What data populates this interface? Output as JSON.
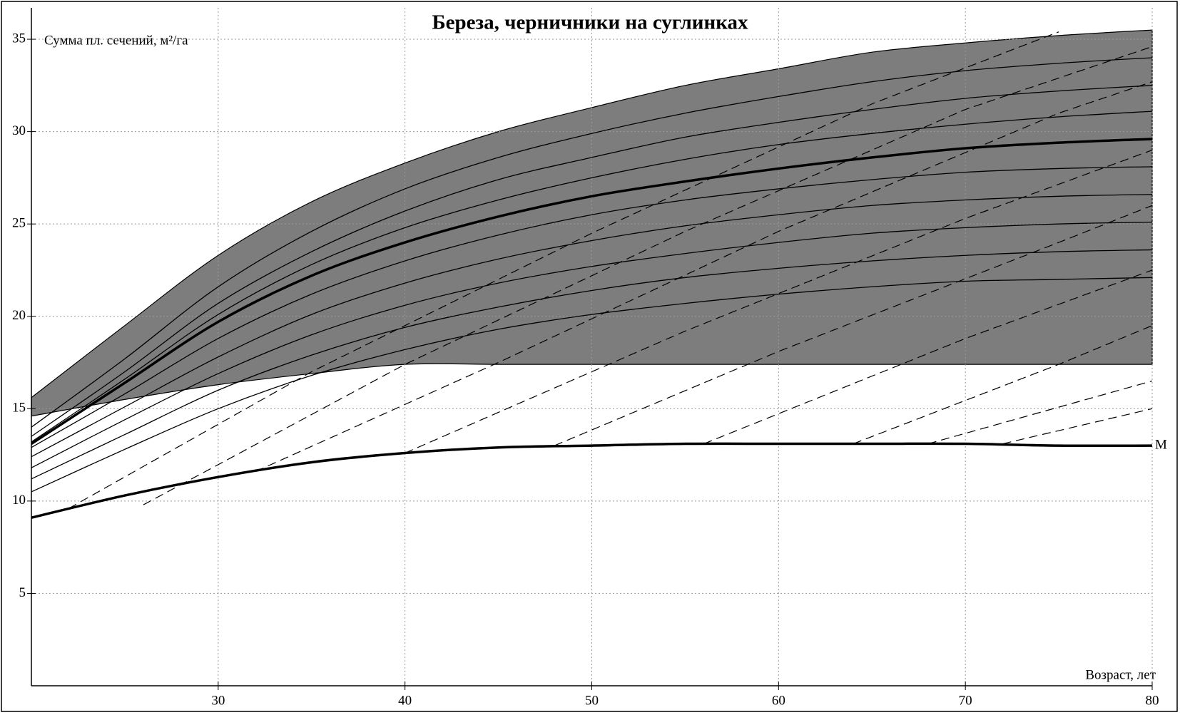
{
  "chart_data": {
    "type": "line",
    "title": "Береза, черничники на суглинках",
    "y_label": "Сумма пл. сечений, м²/га",
    "x_label": "Возраст, лет",
    "xlim": [
      20,
      80
    ],
    "ylim": [
      0,
      36.7
    ],
    "xticks": [
      30,
      40,
      50,
      60,
      70,
      80
    ],
    "yticks": [
      5,
      10,
      15,
      20,
      25,
      30,
      35
    ],
    "grid": true,
    "x": [
      20,
      25,
      30,
      35,
      40,
      45,
      50,
      55,
      60,
      65,
      70,
      75,
      80
    ],
    "band": {
      "color": "#7d7d7d",
      "upper": [
        15.6,
        19.5,
        23.3,
        26.2,
        28.3,
        30.0,
        31.3,
        32.5,
        33.4,
        34.3,
        34.8,
        35.2,
        35.5
      ],
      "lower": [
        14.6,
        15.5,
        16.3,
        16.9,
        17.4,
        17.4,
        17.4,
        17.4,
        17.4,
        17.4,
        17.4,
        17.4,
        17.4
      ]
    },
    "series": [
      {
        "color": "#000000",
        "width": 1.3,
        "values": [
          14.0,
          17.7,
          21.6,
          24.6,
          26.9,
          28.6,
          29.9,
          31.0,
          31.9,
          32.7,
          33.3,
          33.7,
          34.0
        ]
      },
      {
        "color": "#000000",
        "width": 1.3,
        "values": [
          13.5,
          17.0,
          20.7,
          23.5,
          25.7,
          27.4,
          28.6,
          29.7,
          30.5,
          31.2,
          31.8,
          32.2,
          32.5
        ]
      },
      {
        "color": "#000000",
        "width": 1.3,
        "values": [
          13.2,
          16.6,
          20.1,
          22.8,
          24.8,
          26.3,
          27.5,
          28.5,
          29.3,
          29.9,
          30.4,
          30.8,
          31.1
        ]
      },
      {
        "color": "#000000",
        "width": 3.5,
        "values": [
          13.1,
          16.4,
          19.7,
          22.2,
          24.0,
          25.4,
          26.5,
          27.3,
          28.0,
          28.6,
          29.1,
          29.4,
          29.6
        ]
      },
      {
        "color": "#000000",
        "width": 1.3,
        "values": [
          12.9,
          15.8,
          18.8,
          21.2,
          23.0,
          24.4,
          25.5,
          26.3,
          26.9,
          27.4,
          27.8,
          28.0,
          28.1
        ]
      },
      {
        "color": "#000000",
        "width": 1.3,
        "values": [
          12.4,
          15.1,
          17.8,
          20.1,
          21.8,
          23.1,
          24.1,
          24.9,
          25.5,
          26.0,
          26.3,
          26.5,
          26.6
        ]
      },
      {
        "color": "#000000",
        "width": 1.3,
        "values": [
          11.8,
          14.4,
          16.9,
          19.0,
          20.6,
          21.8,
          22.7,
          23.4,
          24.0,
          24.5,
          24.8,
          25.0,
          25.1
        ]
      },
      {
        "color": "#000000",
        "width": 1.3,
        "values": [
          11.2,
          13.6,
          16.0,
          17.9,
          19.4,
          20.5,
          21.4,
          22.1,
          22.6,
          23.0,
          23.3,
          23.5,
          23.6
        ]
      },
      {
        "color": "#000000",
        "width": 1.3,
        "values": [
          10.5,
          12.8,
          15.0,
          16.8,
          18.2,
          19.3,
          20.1,
          20.7,
          21.2,
          21.6,
          21.9,
          22.0,
          22.1
        ]
      },
      {
        "name": "M",
        "color": "#000000",
        "width": 3.5,
        "values": [
          9.1,
          10.3,
          11.3,
          12.1,
          12.6,
          12.9,
          13.0,
          13.1,
          13.1,
          13.1,
          13.1,
          13.0,
          13.0
        ]
      }
    ],
    "dashed": [
      {
        "x": [
          22,
          35,
          50,
          65,
          75
        ],
        "values": [
          9.6,
          17.0,
          24.5,
          31.5,
          35.4
        ]
      },
      {
        "x": [
          26,
          40,
          55,
          70,
          80
        ],
        "values": [
          9.8,
          17.4,
          24.6,
          31.2,
          34.6
        ]
      },
      {
        "x": [
          32,
          45,
          60,
          75,
          80
        ],
        "values": [
          11.6,
          17.5,
          24.6,
          31.0,
          32.7
        ]
      },
      {
        "x": [
          40,
          55,
          70,
          80
        ],
        "values": [
          12.6,
          19.2,
          25.3,
          29.0
        ]
      },
      {
        "x": [
          48,
          60,
          75,
          80
        ],
        "values": [
          13.0,
          18.1,
          24.0,
          26.0
        ]
      },
      {
        "x": [
          56,
          70,
          80
        ],
        "values": [
          13.1,
          18.8,
          22.5
        ]
      },
      {
        "x": [
          64,
          75,
          80
        ],
        "values": [
          13.1,
          17.4,
          19.5
        ]
      },
      {
        "x": [
          68,
          80
        ],
        "values": [
          13.1,
          16.5
        ]
      },
      {
        "x": [
          72,
          80
        ],
        "values": [
          13.1,
          15.0
        ]
      }
    ]
  }
}
